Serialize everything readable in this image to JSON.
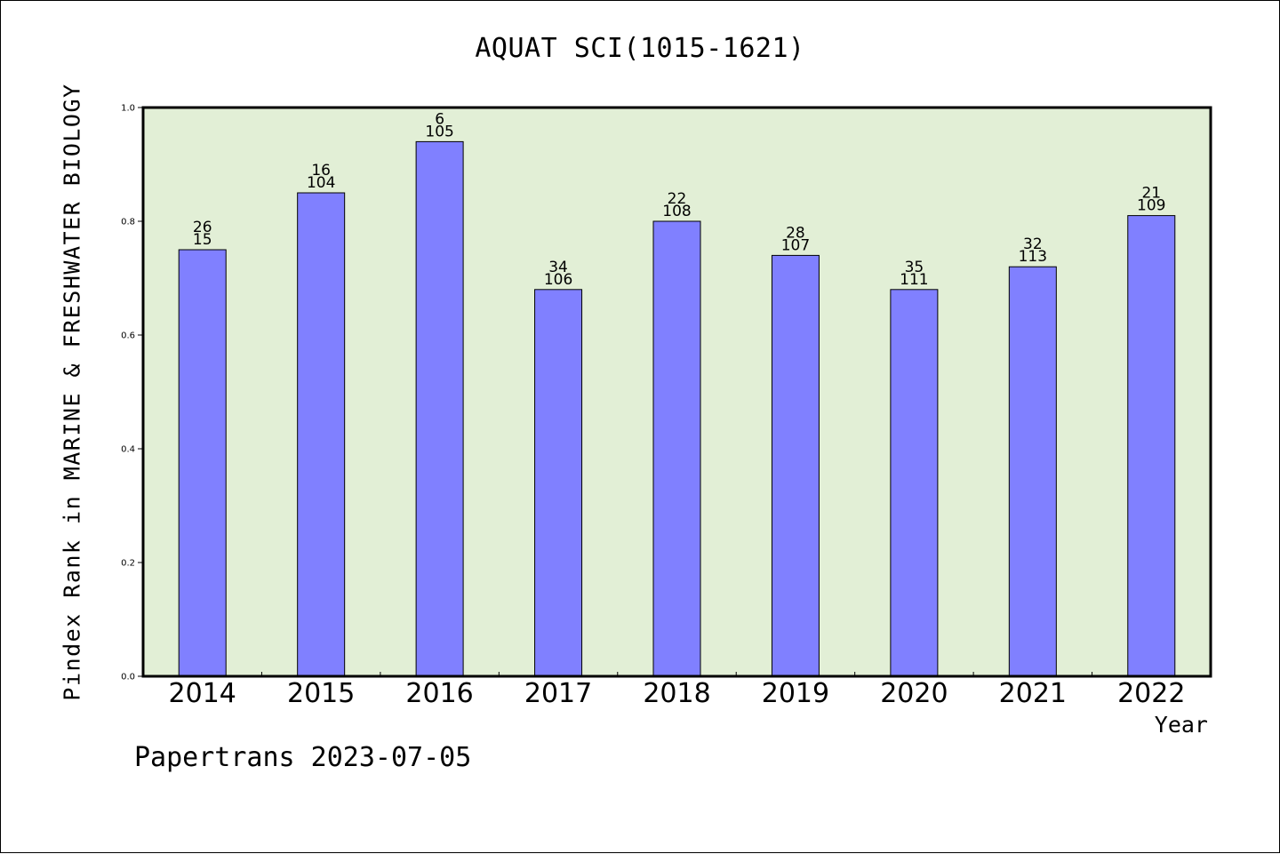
{
  "chart_data": {
    "type": "bar",
    "title": "AQUAT SCI(1015-1621)",
    "xlabel": "Year",
    "ylabel": "Pindex Rank in MARINE & FRESHWATER BIOLOGY",
    "categories": [
      "2014",
      "2015",
      "2016",
      "2017",
      "2018",
      "2019",
      "2020",
      "2021",
      "2022"
    ],
    "values": [
      0.75,
      0.85,
      0.94,
      0.68,
      0.8,
      0.74,
      0.68,
      0.72,
      0.81
    ],
    "rank_labels": [
      "26",
      "16",
      "6",
      "34",
      "22",
      "28",
      "35",
      "32",
      "21"
    ],
    "total_labels": [
      "15",
      "104",
      "105",
      "106",
      "108",
      "107",
      "111",
      "113",
      "109"
    ],
    "ylim": [
      0,
      1.0
    ],
    "yticks": [
      "0.0",
      "0.2",
      "0.4",
      "0.6",
      "0.8",
      "1.0"
    ],
    "grid": false,
    "plot_background": "#e2efd6",
    "bar_color": "#8080ff"
  },
  "footer": "Papertrans 2023-07-05"
}
